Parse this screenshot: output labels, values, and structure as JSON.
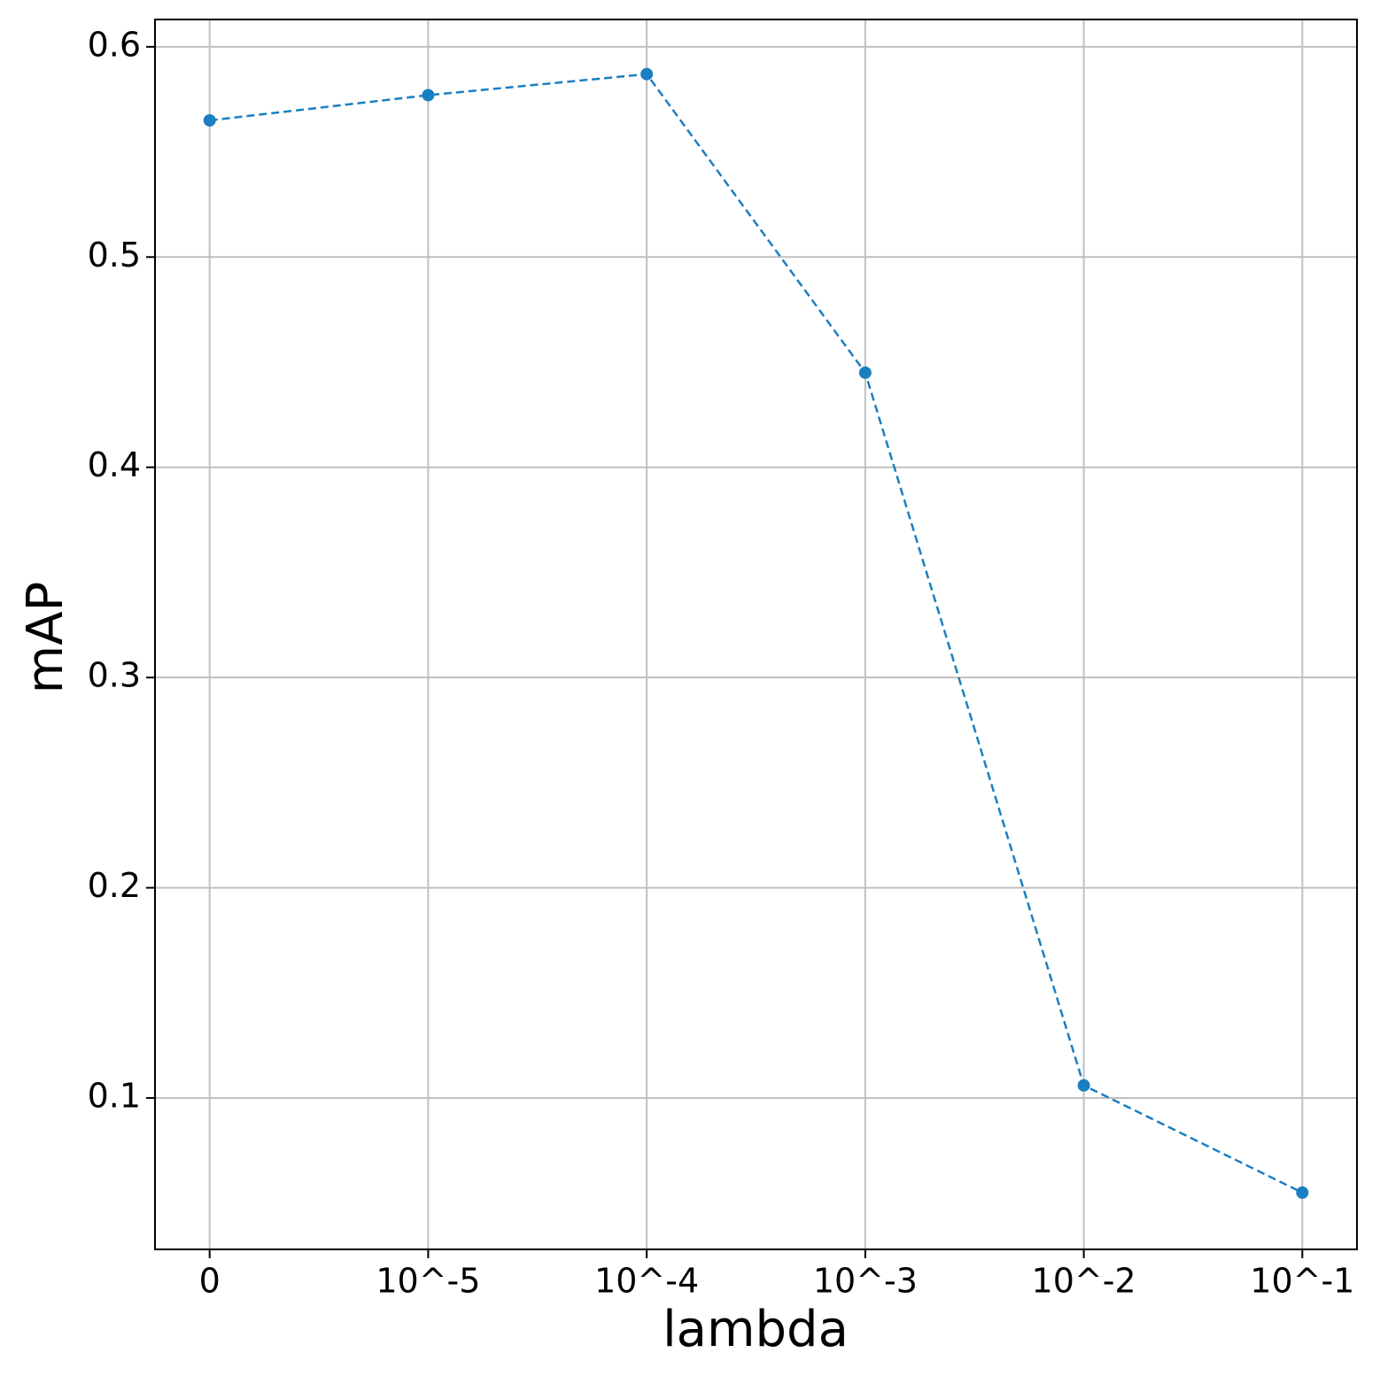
{
  "chart_data": {
    "type": "line",
    "xlabel": "lambda",
    "ylabel": "mAP",
    "categories": [
      "0",
      "10^-5",
      "10^-4",
      "10^-3",
      "10^-2",
      "10^-1"
    ],
    "series": [
      {
        "color": "#1a7fc1",
        "values": [
          0.565,
          0.577,
          0.587,
          0.445,
          0.106,
          0.055
        ]
      }
    ],
    "ylim": [
      0.028,
      0.613
    ],
    "yticks": [
      0.1,
      0.2,
      0.3,
      0.4,
      0.5,
      0.6
    ],
    "grid": true,
    "line_style": "dashed",
    "marker": "circle"
  }
}
